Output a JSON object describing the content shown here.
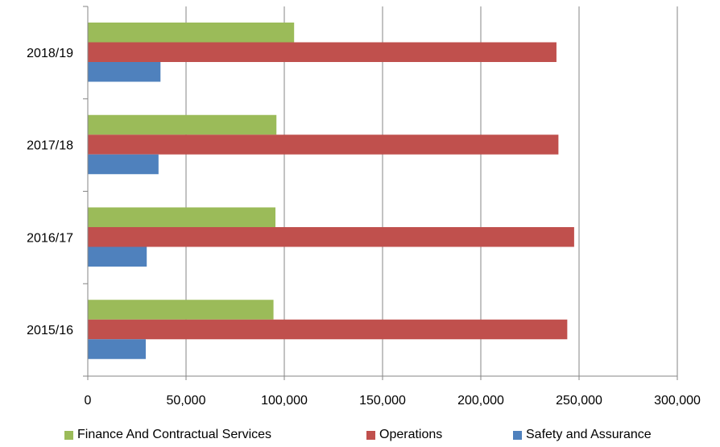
{
  "chart_data": {
    "type": "bar",
    "orientation": "horizontal",
    "categories": [
      "2018/19",
      "2017/18",
      "2016/17",
      "2015/16"
    ],
    "series": [
      {
        "name": "Finance And Contractual Services",
        "color": "#9bbb59",
        "values": [
          105000,
          96000,
          95500,
          94500
        ]
      },
      {
        "name": "Operations",
        "color": "#c0504d",
        "values": [
          238500,
          239500,
          247500,
          244000
        ]
      },
      {
        "name": "Safety and Assurance",
        "color": "#4f81bd",
        "values": [
          37000,
          36000,
          30000,
          29500
        ]
      }
    ],
    "xlim": [
      0,
      300000
    ],
    "xticks": [
      0,
      50000,
      100000,
      150000,
      200000,
      250000,
      300000
    ],
    "xtick_labels": [
      "0",
      "50,000",
      "100,000",
      "150,000",
      "200,000",
      "250,000",
      "300,000"
    ],
    "grid": "vertical",
    "legend_position": "bottom"
  }
}
